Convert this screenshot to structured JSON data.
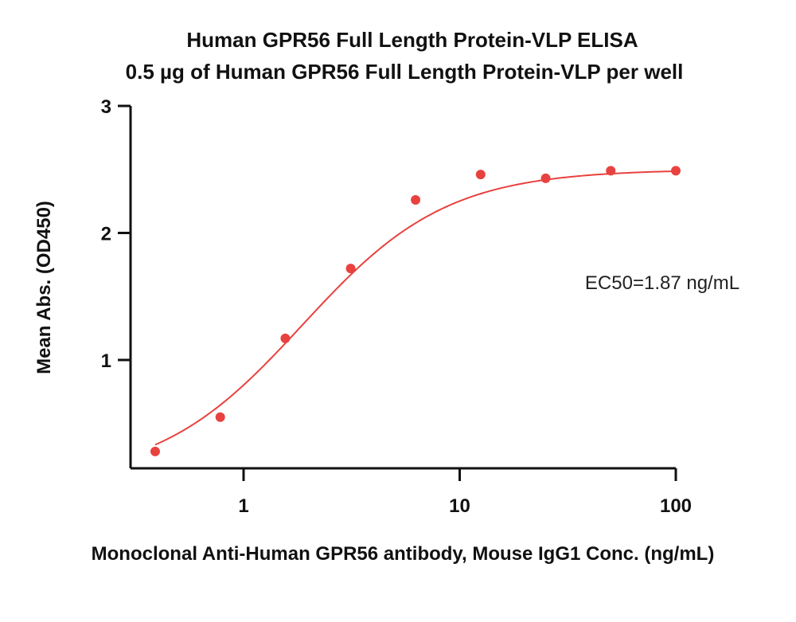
{
  "chart_data": {
    "type": "scatter",
    "title": "Human GPR56 Full Length Protein-VLP ELISA",
    "subtitle": "0.5 µg of Human GPR56 Full Length Protein-VLP per well",
    "xlabel": "Monoclonal Anti-Human GPR56 antibody, Mouse IgG1 Conc. (ng/mL)",
    "ylabel": "Mean Abs. (OD450)",
    "xscale": "log",
    "xlim": [
      0.35,
      100
    ],
    "ylim": [
      0.28,
      3
    ],
    "x_ticks": [
      1,
      10,
      100
    ],
    "x_tick_labels": [
      "1",
      "10",
      "100"
    ],
    "y_ticks": [
      1,
      2,
      3
    ],
    "y_tick_labels": [
      "1",
      "2",
      "3"
    ],
    "grid": false,
    "color": "#e8423f",
    "series": [
      {
        "x": [
          0.39,
          0.78,
          1.56,
          3.13,
          6.25,
          12.5,
          25,
          50,
          100
        ],
        "y": [
          0.28,
          0.55,
          1.17,
          1.72,
          2.26,
          2.46,
          2.43,
          2.49,
          2.49
        ]
      }
    ],
    "fit": {
      "type": "4PL",
      "bottom": 0.05,
      "top": 2.5,
      "ec50": 1.87,
      "hill": 1.3
    },
    "annotations": [
      "EC50=1.87 ng/mL"
    ]
  }
}
